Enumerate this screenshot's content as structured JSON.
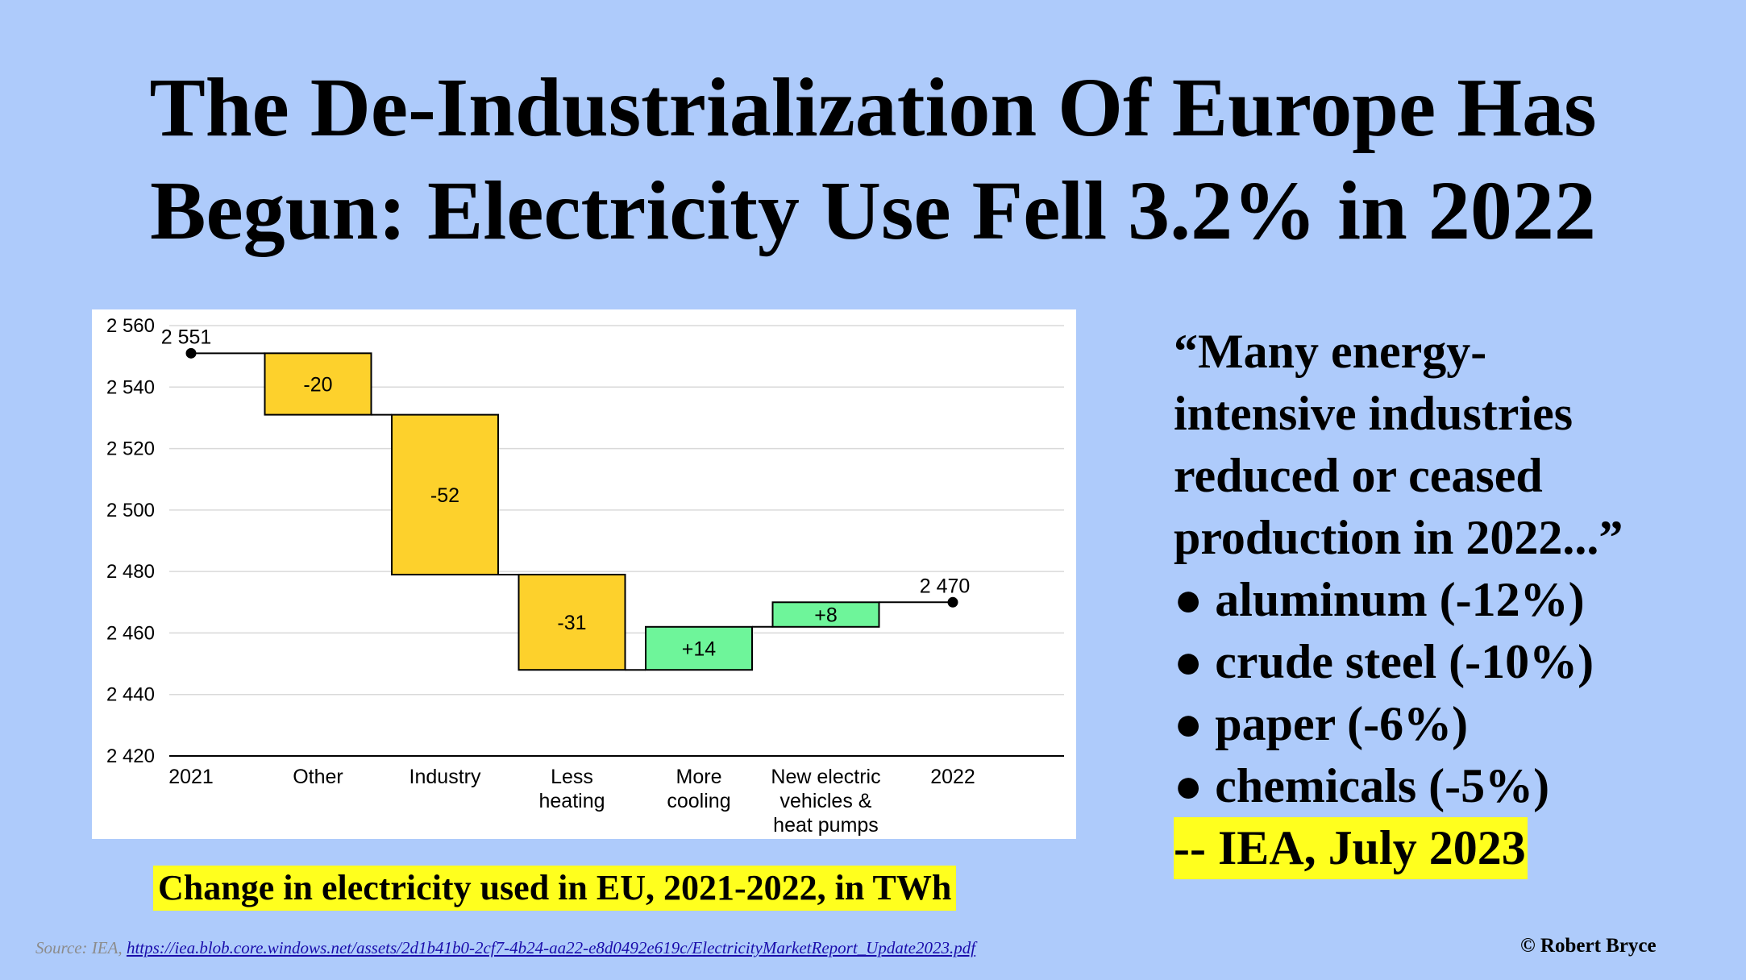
{
  "title": {
    "line1": "The De-Industrialization Of Europe Has",
    "line2": "Begun: Electricity Use Fell 3.2% in 2022"
  },
  "chart_data": {
    "type": "waterfall",
    "categories": [
      [
        "2021"
      ],
      [
        "Other"
      ],
      [
        "Industry"
      ],
      [
        "Less",
        "heating"
      ],
      [
        "More",
        "cooling"
      ],
      [
        "New electric",
        "vehicles &",
        "heat pumps"
      ],
      [
        "2022"
      ]
    ],
    "start": {
      "category": "2021",
      "value": 2551,
      "label": "2 551"
    },
    "end": {
      "category": "2022",
      "value": 2470,
      "label": "2 470"
    },
    "changes": [
      {
        "category": "Other",
        "value": -20,
        "label": "-20"
      },
      {
        "category": "Industry",
        "value": -52,
        "label": "-52"
      },
      {
        "category": "Less heating",
        "value": -31,
        "label": "-31"
      },
      {
        "category": "More cooling",
        "value": 14,
        "label": "+14"
      },
      {
        "category": "New electric vehicles & heat pumps",
        "value": 8,
        "label": "+8"
      }
    ],
    "ylim": [
      2420,
      2560
    ],
    "yticks": [
      2420,
      2440,
      2460,
      2480,
      2500,
      2520,
      2540,
      2560
    ],
    "ytick_labels": [
      "2 420",
      "2 440",
      "2 460",
      "2 480",
      "2 500",
      "2 520",
      "2 540",
      "2 560"
    ],
    "grid": true,
    "colors": {
      "decrease": "#fdd12c",
      "increase": "#6ef59a",
      "bar_edge": "#000000",
      "grid": "#d9d9d9"
    }
  },
  "caption": "Change in electricity used in EU, 2021-2022, in TWh",
  "quote": {
    "lines": [
      "“Many energy-",
      "intensive industries",
      "reduced or ceased",
      "production in 2022...”"
    ],
    "bullets": [
      "● aluminum (-12%)",
      "● crude steel (-10%)",
      "● paper (-6%)",
      "● chemicals (-5%)"
    ],
    "attribution": "-- IEA, July 2023"
  },
  "source": {
    "prefix": "Source: IEA, ",
    "url": "https://iea.blob.core.windows.net/assets/2d1b41b0-2cf7-4b24-aa22-e8d0492e619c/ElectricityMarketReport_Update2023.pdf"
  },
  "copyright": "© Robert Bryce"
}
